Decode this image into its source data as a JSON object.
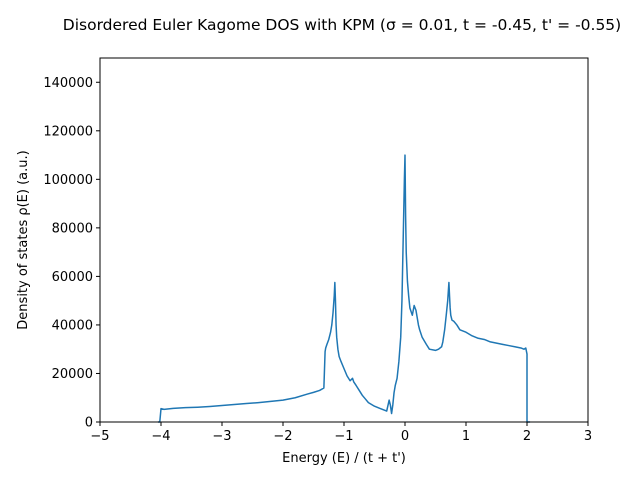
{
  "chart_data": {
    "type": "line",
    "title": "Disordered Euler Kagome DOS with KPM (σ = 0.01, t = -0.45, t' = -0.55)",
    "xlabel": "Energy (E) / (t + t')",
    "ylabel": "Density of states ρ(E) (a.u.)",
    "xlim": [
      -5,
      3
    ],
    "ylim": [
      0,
      150000
    ],
    "xticks": [
      "−5",
      "−4",
      "−3",
      "−2",
      "−1",
      "0",
      "1",
      "2",
      "3"
    ],
    "yticks": [
      "0",
      "20000",
      "40000",
      "60000",
      "80000",
      "100000",
      "120000",
      "140000"
    ],
    "grid": false,
    "line_color": "#1f77b4",
    "series": [
      {
        "x": [
          -4.05,
          -4.03,
          -4.02,
          -4.0,
          -3.95,
          -3.8,
          -3.6,
          -3.4,
          -3.2,
          -3.0,
          -2.8,
          -2.6,
          -2.4,
          -2.2,
          -2.0,
          -1.8,
          -1.6,
          -1.5,
          -1.4,
          -1.33,
          -1.31,
          -1.3,
          -1.28,
          -1.25,
          -1.22,
          -1.2,
          -1.18,
          -1.16,
          -1.15,
          -1.14,
          -1.13,
          -1.12,
          -1.1,
          -1.08,
          -1.05,
          -1.0,
          -0.95,
          -0.9,
          -0.86,
          -0.84,
          -0.8,
          -0.75,
          -0.7,
          -0.65,
          -0.6,
          -0.5,
          -0.4,
          -0.3,
          -0.26,
          -0.24,
          -0.22,
          -0.2,
          -0.18,
          -0.16,
          -0.13,
          -0.1,
          -0.07,
          -0.05,
          -0.03,
          -0.01,
          0.0,
          0.01,
          0.02,
          0.04,
          0.06,
          0.08,
          0.1,
          0.12,
          0.15,
          0.18,
          0.2,
          0.22,
          0.24,
          0.28,
          0.35,
          0.4,
          0.5,
          0.55,
          0.6,
          0.62,
          0.65,
          0.68,
          0.7,
          0.72,
          0.73,
          0.74,
          0.75,
          0.77,
          0.8,
          0.85,
          0.9,
          1.0,
          1.1,
          1.2,
          1.3,
          1.4,
          1.5,
          1.6,
          1.7,
          1.8,
          1.9,
          1.95,
          1.98,
          2.0,
          2.0,
          2.02,
          2.03,
          2.05
        ],
        "y": [
          0,
          0,
          0,
          5500,
          5200,
          5600,
          5900,
          6100,
          6400,
          6800,
          7200,
          7600,
          8000,
          8500,
          9000,
          10000,
          11500,
          12200,
          13000,
          14000,
          29000,
          30500,
          32000,
          34000,
          37000,
          40000,
          45000,
          52000,
          57500,
          50000,
          40000,
          35000,
          30000,
          27000,
          25000,
          22000,
          19000,
          17000,
          18000,
          16500,
          15000,
          13000,
          11000,
          9500,
          8000,
          6500,
          5500,
          4500,
          9000,
          7000,
          3500,
          7000,
          12000,
          15000,
          18000,
          25000,
          35000,
          50000,
          75000,
          100000,
          110000,
          85000,
          70000,
          58000,
          52000,
          47000,
          45500,
          44000,
          48000,
          46000,
          43000,
          40000,
          38000,
          35000,
          32000,
          30000,
          29500,
          30000,
          31000,
          33000,
          38000,
          45000,
          50000,
          57500,
          52000,
          47000,
          44000,
          42000,
          41500,
          40000,
          38000,
          37000,
          35500,
          34500,
          34000,
          33000,
          32500,
          32000,
          31500,
          31000,
          30500,
          30000,
          30500,
          28000,
          0,
          0,
          0,
          0
        ]
      }
    ]
  }
}
